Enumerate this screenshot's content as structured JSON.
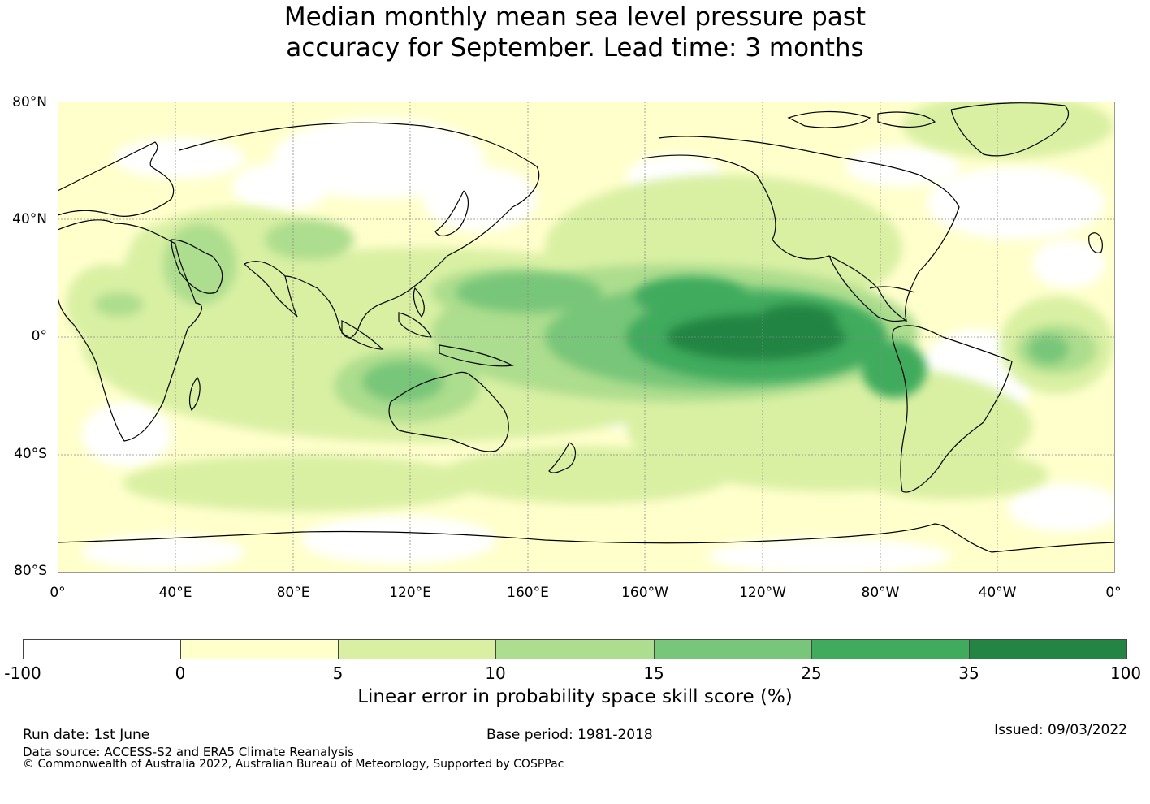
{
  "title_line1": "Median monthly mean sea level pressure past",
  "title_line2": "accuracy for September. Lead time: 3 months",
  "map": {
    "lat_labels": [
      "80°N",
      "40°N",
      "0°",
      "40°S",
      "80°S"
    ],
    "lon_labels": [
      "0°",
      "40°E",
      "80°E",
      "120°E",
      "160°E",
      "160°W",
      "120°W",
      "80°W",
      "40°W",
      "0°"
    ],
    "colors": {
      "c0": "#ffffff",
      "c1": "#ffffcc",
      "c2": "#d9f0a3",
      "c3": "#addd8e",
      "c4": "#78c679",
      "c5": "#41ab5d",
      "c6": "#238443"
    }
  },
  "colorbar": {
    "ticks": [
      "-100",
      "0",
      "5",
      "10",
      "15",
      "25",
      "35",
      "100"
    ],
    "label": "Linear error in probability space skill score (%)"
  },
  "footer": {
    "run_date": "Run date: 1st June",
    "base_period": "Base period: 1981-2018",
    "issued": "Issued: 09/03/2022",
    "data_source": "Data source: ACCESS-S2 and ERA5 Climate Reanalysis",
    "copyright": "© Commonwealth of Australia 2022, Australian Bureau of Meteorology, Supported by COSPPac"
  }
}
